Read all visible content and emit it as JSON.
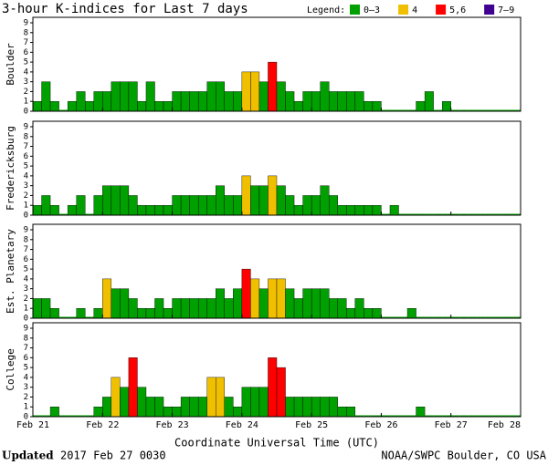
{
  "chart_data": {
    "type": "bar",
    "title": "3-hour K-indices for Last 7 days",
    "legend_title": "Legend:",
    "legend": [
      {
        "name": "0–3",
        "color": "#00a000",
        "range": [
          0,
          3
        ]
      },
      {
        "name": "4",
        "color": "#f0c000",
        "range": [
          4,
          4
        ]
      },
      {
        "name": "5,6",
        "color": "#ff0000",
        "range": [
          5,
          6
        ]
      },
      {
        "name": "7–9",
        "color": "#400090",
        "range": [
          7,
          9
        ]
      }
    ],
    "x_ticks": [
      "Feb 21",
      "Feb 22",
      "Feb 23",
      "Feb 24",
      "Feb 25",
      "Feb 26",
      "Feb 27",
      "Feb 28"
    ],
    "x_label": "Coordinate Universal Time (UTC)",
    "ylim": [
      0,
      9
    ],
    "yticks": [
      0,
      1,
      2,
      3,
      4,
      5,
      6,
      7,
      8,
      9
    ],
    "panels": [
      {
        "name": "Boulder",
        "values": [
          1,
          3,
          1,
          0,
          1,
          2,
          1,
          2,
          2,
          3,
          3,
          3,
          1,
          3,
          1,
          1,
          2,
          2,
          2,
          2,
          3,
          3,
          2,
          2,
          4,
          4,
          3,
          5,
          3,
          2,
          1,
          2,
          2,
          3,
          2,
          2,
          2,
          2,
          1,
          1,
          0,
          0,
          0,
          0,
          1,
          2,
          0,
          1,
          0,
          0,
          0,
          0,
          0,
          0,
          0,
          0
        ]
      },
      {
        "name": "Fredericksburg",
        "values": [
          1,
          2,
          1,
          0,
          1,
          2,
          0,
          2,
          3,
          3,
          3,
          2,
          1,
          1,
          1,
          1,
          2,
          2,
          2,
          2,
          2,
          3,
          2,
          2,
          4,
          3,
          3,
          4,
          3,
          2,
          1,
          2,
          2,
          3,
          2,
          1,
          1,
          1,
          1,
          1,
          0,
          1,
          0,
          0,
          0,
          0,
          0,
          0,
          0,
          0,
          0,
          0,
          0,
          0,
          0,
          0
        ]
      },
      {
        "name": "Est. Planetary",
        "values": [
          2,
          2,
          1,
          0,
          0,
          1,
          0,
          1,
          4,
          3,
          3,
          2,
          1,
          1,
          2,
          1,
          2,
          2,
          2,
          2,
          2,
          3,
          2,
          3,
          5,
          4,
          3,
          4,
          4,
          3,
          2,
          3,
          3,
          3,
          2,
          2,
          1,
          2,
          1,
          1,
          0,
          0,
          0,
          1,
          0,
          0,
          0,
          0,
          0,
          0,
          0,
          0,
          0,
          0,
          0,
          0
        ]
      },
      {
        "name": "College",
        "values": [
          0,
          0,
          1,
          0,
          0,
          0,
          0,
          1,
          2,
          4,
          3,
          6,
          3,
          2,
          2,
          1,
          1,
          2,
          2,
          2,
          4,
          4,
          2,
          1,
          3,
          3,
          3,
          6,
          5,
          2,
          2,
          2,
          2,
          2,
          2,
          1,
          1,
          0,
          0,
          0,
          0,
          0,
          0,
          0,
          1,
          0,
          0,
          0,
          0,
          0,
          0,
          0,
          0,
          0,
          0,
          0
        ]
      }
    ],
    "footer": {
      "updated_label": "Updated",
      "updated_time": "2017 Feb 27 0030",
      "source": "NOAA/SWPC Boulder, CO USA"
    }
  }
}
